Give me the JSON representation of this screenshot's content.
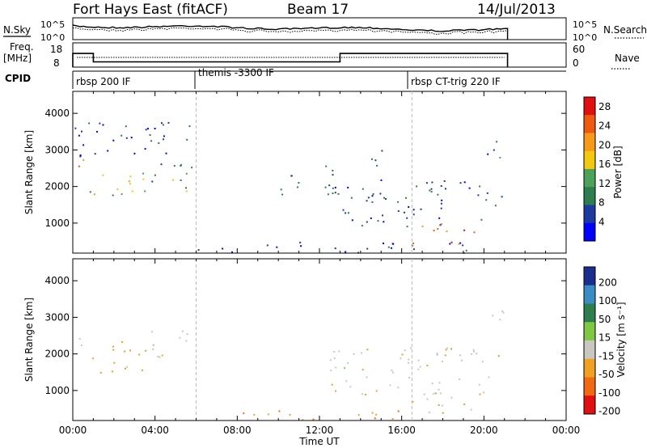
{
  "header": {
    "title": "Fort Hays East (fitACF)",
    "beam": "Beam 17",
    "date": "14/Jul/2013"
  },
  "noise_panel": {
    "left_label": "N.Sky",
    "left_ticks": [
      "10^5",
      "10^0"
    ],
    "right_ticks": [
      "10^5",
      "10^0"
    ],
    "right_label": "N.Search"
  },
  "freq_panel": {
    "left_label_1": "Freq.",
    "left_label_2": "[MHz]",
    "left_ticks": [
      "18",
      "8"
    ],
    "right_ticks": [
      "60",
      "0"
    ],
    "right_label": "Nave",
    "freq_steps": [
      {
        "x": [
          0.0,
          1.0
        ],
        "y": 14.5
      },
      {
        "x": [
          1.0,
          13.0
        ],
        "y": 10.5
      },
      {
        "x": [
          13.0,
          21.15
        ],
        "y": 14.5
      }
    ]
  },
  "cpid": {
    "label": "CPID",
    "segments": [
      {
        "start": 0.0,
        "name": "rbsp 200 IF"
      },
      {
        "start": 6.0,
        "name": "themis -3300 IF"
      },
      {
        "start": 16.5,
        "name": "rbsp CT-trig 220 IF"
      }
    ]
  },
  "chart_data": [
    {
      "type": "heatmap",
      "title": "",
      "xlabel": "Time UT",
      "ylabel": "Slant Range [km]",
      "x_ticks": [
        "00:00",
        "04:00",
        "08:00",
        "12:00",
        "16:00",
        "20:00",
        "00:00"
      ],
      "y_ticks": [
        "1000",
        "2000",
        "3000",
        "4000"
      ],
      "xlim": [
        0,
        24
      ],
      "ylim": [
        180,
        4600
      ],
      "colorbar": {
        "label": "Power [dB]",
        "ticks": [
          "4",
          "8",
          "12",
          "16",
          "20",
          "24",
          "28"
        ],
        "range": [
          0,
          30
        ]
      },
      "regions": [
        {
          "t": [
            0.0,
            1.0
          ],
          "r": [
            2250,
            2750
          ],
          "v": 25
        },
        {
          "t": [
            0.8,
            3.5
          ],
          "r": [
            1500,
            2400
          ],
          "v": 15
        },
        {
          "t": [
            3.5,
            6.0
          ],
          "r": [
            1800,
            2700
          ],
          "v": 12
        },
        {
          "t": [
            0.0,
            6.0
          ],
          "r": [
            2800,
            3800
          ],
          "v": 5
        },
        {
          "t": [
            10.0,
            13.0
          ],
          "r": [
            1800,
            2600
          ],
          "v": 6
        },
        {
          "t": [
            12.5,
            21.0
          ],
          "r": [
            900,
            2200
          ],
          "v": 6
        },
        {
          "t": [
            16.5,
            19.5
          ],
          "r": [
            400,
            1000
          ],
          "v": 24
        },
        {
          "t": [
            14.5,
            16.0
          ],
          "r": [
            2500,
            3000
          ],
          "v": 5
        },
        {
          "t": [
            19.5,
            21.0
          ],
          "r": [
            2800,
            3300
          ],
          "v": 8
        },
        {
          "t": [
            6.0,
            20.0
          ],
          "r": [
            200,
            500
          ],
          "v": 4
        }
      ]
    },
    {
      "type": "heatmap",
      "title": "",
      "xlabel": "Time UT",
      "ylabel": "Slant Range [km]",
      "x_ticks": [
        "00:00",
        "04:00",
        "08:00",
        "12:00",
        "16:00",
        "20:00",
        "00:00"
      ],
      "y_ticks": [
        "1000",
        "2000",
        "3000",
        "4000"
      ],
      "xlim": [
        0,
        24
      ],
      "ylim": [
        180,
        4600
      ],
      "colorbar": {
        "label": "Velocity [m s⁻¹]",
        "ticks": [
          "200",
          "100",
          "50",
          "15",
          "-15",
          "-50",
          "-100",
          "-200"
        ],
        "range": [
          -250,
          250
        ]
      },
      "regions": [
        {
          "t": [
            0.0,
            1.0
          ],
          "r": [
            2250,
            2750
          ],
          "v": 0
        },
        {
          "t": [
            0.8,
            3.5
          ],
          "r": [
            1500,
            2400
          ],
          "v": -30
        },
        {
          "t": [
            3.5,
            6.0
          ],
          "r": [
            1800,
            2700
          ],
          "v": 0
        },
        {
          "t": [
            12.5,
            21.0
          ],
          "r": [
            900,
            2200
          ],
          "v": 0
        },
        {
          "t": [
            16.5,
            19.5
          ],
          "r": [
            400,
            1000
          ],
          "v": 0
        },
        {
          "t": [
            19.5,
            21.0
          ],
          "r": [
            2800,
            3300
          ],
          "v": 0
        },
        {
          "t": [
            8.0,
            16.0
          ],
          "r": [
            200,
            500
          ],
          "v": -40
        }
      ]
    }
  ],
  "colors": {
    "power_scale": [
      "#0000ff",
      "#1d3aa3",
      "#2e7d4f",
      "#4ca25a",
      "#f2c811",
      "#f79a1c",
      "#ef5a12",
      "#e01010"
    ],
    "velocity_scale": [
      "#1b2e8f",
      "#3a8cc4",
      "#2e7d4f",
      "#7ec843",
      "#c8c8c0",
      "#f0a023",
      "#ef6a12",
      "#e01010"
    ]
  }
}
